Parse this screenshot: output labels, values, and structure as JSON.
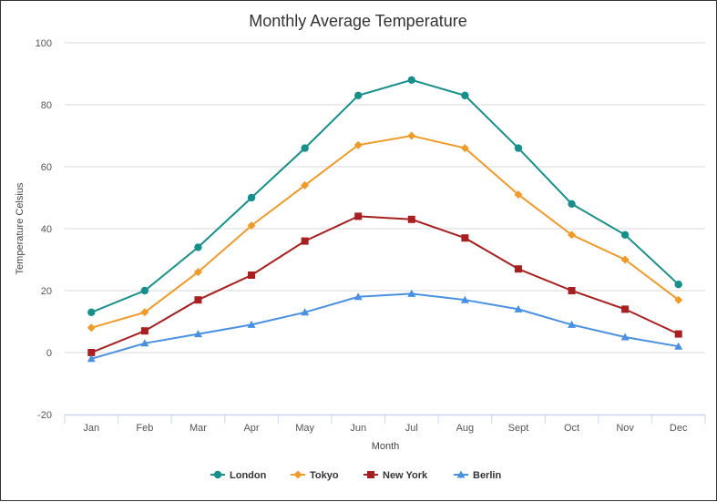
{
  "chart_data": {
    "type": "line",
    "title": "Monthly Average Temperature",
    "xlabel": "Month",
    "ylabel": "Temperature Celsius",
    "ylim": [
      -20,
      100
    ],
    "yticks": [
      -20,
      0,
      20,
      40,
      60,
      80,
      100
    ],
    "grid": true,
    "legend_position": "bottom",
    "categories": [
      "Jan",
      "Feb",
      "Mar",
      "Apr",
      "May",
      "Jun",
      "Jul",
      "Aug",
      "Sept",
      "Oct",
      "Nov",
      "Dec"
    ],
    "series": [
      {
        "name": "London",
        "color": "#178f8a",
        "marker": "circle",
        "values": [
          13,
          20,
          34,
          50,
          66,
          83,
          88,
          83,
          66,
          48,
          38,
          22
        ]
      },
      {
        "name": "Tokyo",
        "color": "#f09a2a",
        "marker": "diamond",
        "values": [
          8,
          13,
          26,
          41,
          54,
          67,
          70,
          66,
          51,
          38,
          30,
          17
        ]
      },
      {
        "name": "New York",
        "color": "#a81f1f",
        "marker": "square",
        "values": [
          0,
          7,
          17,
          25,
          36,
          44,
          43,
          37,
          27,
          20,
          14,
          6
        ]
      },
      {
        "name": "Berlin",
        "color": "#4a90e2",
        "marker": "triangle",
        "values": [
          -2,
          3,
          6,
          9,
          13,
          18,
          19,
          17,
          14,
          9,
          5,
          2
        ]
      }
    ]
  }
}
